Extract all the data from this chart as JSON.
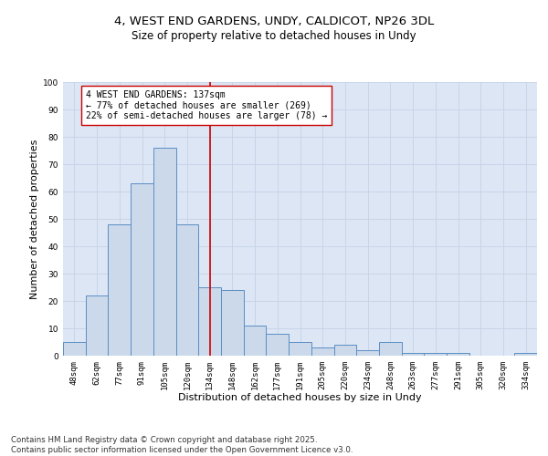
{
  "title_line1": "4, WEST END GARDENS, UNDY, CALDICOT, NP26 3DL",
  "title_line2": "Size of property relative to detached houses in Undy",
  "xlabel": "Distribution of detached houses by size in Undy",
  "ylabel": "Number of detached properties",
  "categories": [
    "48sqm",
    "62sqm",
    "77sqm",
    "91sqm",
    "105sqm",
    "120sqm",
    "134sqm",
    "148sqm",
    "162sqm",
    "177sqm",
    "191sqm",
    "205sqm",
    "220sqm",
    "234sqm",
    "248sqm",
    "263sqm",
    "277sqm",
    "291sqm",
    "305sqm",
    "320sqm",
    "334sqm"
  ],
  "values": [
    5,
    22,
    48,
    63,
    76,
    48,
    25,
    24,
    11,
    8,
    5,
    3,
    4,
    2,
    5,
    1,
    1,
    1,
    0,
    0,
    1
  ],
  "bar_color": "#ccd9ea",
  "bar_edge_color": "#5b8ec4",
  "vline_x": 6,
  "vline_color": "#cc0000",
  "annotation_text": "4 WEST END GARDENS: 137sqm\n← 77% of detached houses are smaller (269)\n22% of semi-detached houses are larger (78) →",
  "annotation_box_color": "#ffffff",
  "annotation_box_edge": "#cc0000",
  "ylim": [
    0,
    100
  ],
  "yticks": [
    0,
    10,
    20,
    30,
    40,
    50,
    60,
    70,
    80,
    90,
    100
  ],
  "grid_color": "#c8d4e8",
  "background_color": "#dce6f5",
  "footnote": "Contains HM Land Registry data © Crown copyright and database right 2025.\nContains public sector information licensed under the Open Government Licence v3.0.",
  "title_fontsize": 9.5,
  "subtitle_fontsize": 8.5,
  "label_fontsize": 8,
  "tick_fontsize": 6.5,
  "annotation_fontsize": 7,
  "footnote_fontsize": 6.2
}
